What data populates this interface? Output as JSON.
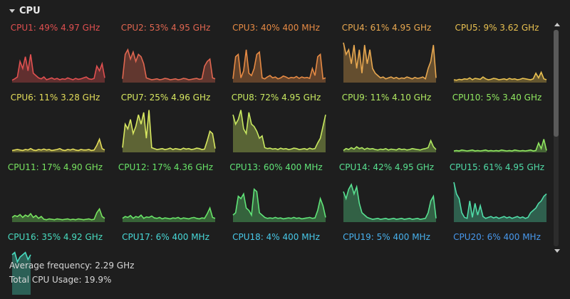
{
  "section": {
    "title": "CPU"
  },
  "cores": [
    {
      "label": "CPU1: 49% 4.97 GHz",
      "color": "#e05050",
      "history": [
        5,
        8,
        12,
        45,
        30,
        55,
        25,
        60,
        20,
        15,
        10,
        8,
        12,
        6,
        8,
        10,
        7,
        9,
        6,
        8,
        7,
        10,
        8,
        6,
        9,
        7,
        8,
        10,
        12,
        8,
        7,
        9,
        35,
        25,
        40,
        10
      ]
    },
    {
      "label": "CPU2: 53% 4.95 GHz",
      "color": "#e06650",
      "history": [
        8,
        60,
        70,
        50,
        65,
        45,
        60,
        55,
        40,
        10,
        8,
        6,
        7,
        8,
        6,
        7,
        9,
        8,
        6,
        7,
        8,
        6,
        7,
        9,
        8,
        6,
        7,
        8,
        9,
        7,
        8,
        35,
        45,
        50,
        10,
        8
      ]
    },
    {
      "label": "CPU3: 40% 400 MHz",
      "color": "#e68a44",
      "history": [
        8,
        55,
        60,
        10,
        25,
        70,
        20,
        15,
        30,
        60,
        65,
        10,
        8,
        12,
        15,
        10,
        12,
        8,
        10,
        14,
        12,
        9,
        11,
        10,
        13,
        9,
        12,
        10,
        11,
        9,
        30,
        15,
        55,
        60,
        8,
        10
      ]
    },
    {
      "label": "CPU4: 61% 4.95 GHz",
      "color": "#e8a850",
      "history": [
        85,
        60,
        70,
        40,
        80,
        30,
        70,
        20,
        80,
        40,
        70,
        30,
        20,
        15,
        10,
        12,
        8,
        10,
        12,
        9,
        11,
        8,
        10,
        9,
        12,
        10,
        8,
        11,
        9,
        10,
        12,
        8,
        30,
        45,
        80,
        10
      ]
    },
    {
      "label": "CPU5: 9% 3.62 GHz",
      "color": "#e8c050",
      "history": [
        6,
        5,
        7,
        6,
        8,
        7,
        10,
        6,
        9,
        8,
        7,
        12,
        8,
        6,
        7,
        9,
        8,
        6,
        7,
        8,
        6,
        9,
        7,
        8,
        6,
        7,
        9,
        8,
        7,
        6,
        8,
        20,
        10,
        22,
        8,
        6
      ]
    },
    {
      "label": "CPU6: 11% 3.28 GHz",
      "color": "#e4dd5a",
      "history": [
        4,
        5,
        6,
        5,
        4,
        6,
        5,
        8,
        5,
        4,
        6,
        5,
        7,
        5,
        6,
        4,
        5,
        6,
        8,
        5,
        4,
        6,
        5,
        7,
        5,
        4,
        6,
        5,
        5,
        6,
        4,
        5,
        15,
        28,
        8,
        5
      ]
    },
    {
      "label": "CPU7: 25% 4.96 GHz",
      "color": "#d8e860",
      "history": [
        10,
        60,
        50,
        70,
        40,
        55,
        80,
        60,
        85,
        30,
        90,
        10,
        8,
        6,
        7,
        8,
        6,
        7,
        9,
        6,
        8,
        7,
        6,
        9,
        7,
        8,
        6,
        7,
        9,
        8,
        6,
        7,
        25,
        45,
        40,
        8
      ]
    },
    {
      "label": "CPU8: 72% 4.95 GHz",
      "color": "#c8e860",
      "history": [
        80,
        60,
        70,
        90,
        50,
        40,
        85,
        60,
        55,
        45,
        30,
        35,
        10,
        8,
        9,
        7,
        8,
        6,
        9,
        7,
        8,
        6,
        7,
        9,
        8,
        6,
        7,
        8,
        6,
        9,
        7,
        8,
        20,
        30,
        55,
        80
      ]
    },
    {
      "label": "CPU9: 11% 4.10 GHz",
      "color": "#b0e860",
      "history": [
        4,
        8,
        6,
        10,
        7,
        12,
        8,
        10,
        6,
        9,
        7,
        8,
        6,
        5,
        7,
        6,
        8,
        5,
        7,
        6,
        5,
        8,
        6,
        7,
        5,
        6,
        8,
        7,
        6,
        5,
        7,
        8,
        10,
        25,
        12,
        6
      ]
    },
    {
      "label": "CPU10: 5% 3.40 GHz",
      "color": "#90e860",
      "history": [
        3,
        4,
        3,
        5,
        4,
        3,
        4,
        5,
        3,
        4,
        3,
        4,
        5,
        3,
        4,
        3,
        4,
        3,
        5,
        4,
        3,
        4,
        3,
        5,
        4,
        3,
        4,
        3,
        4,
        5,
        3,
        4,
        20,
        8,
        28,
        4
      ]
    },
    {
      "label": "CPU11: 17% 4.90 GHz",
      "color": "#78e460",
      "history": [
        10,
        14,
        12,
        16,
        10,
        15,
        12,
        18,
        10,
        14,
        8,
        12,
        6,
        5,
        7,
        6,
        5,
        7,
        6,
        5,
        6,
        7,
        5,
        6,
        5,
        7,
        6,
        5,
        6,
        7,
        5,
        6,
        20,
        28,
        12,
        8
      ]
    },
    {
      "label": "CPU12: 17% 4.36 GHz",
      "color": "#68e468",
      "history": [
        8,
        12,
        10,
        14,
        8,
        12,
        10,
        15,
        8,
        11,
        10,
        13,
        9,
        8,
        10,
        7,
        9,
        8,
        7,
        9,
        8,
        10,
        7,
        9,
        8,
        7,
        9,
        10,
        8,
        7,
        9,
        8,
        18,
        30,
        10,
        8
      ]
    },
    {
      "label": "CPU13: 60% 400 MHz",
      "color": "#60e478",
      "history": [
        15,
        20,
        55,
        50,
        60,
        30,
        25,
        15,
        70,
        65,
        20,
        15,
        10,
        8,
        9,
        8,
        10,
        8,
        9,
        7,
        8,
        9,
        8,
        10,
        8,
        9,
        7,
        8,
        9,
        10,
        8,
        9,
        25,
        50,
        35,
        10
      ]
    },
    {
      "label": "CPU14: 42% 4.95 GHz",
      "color": "#58e090",
      "history": [
        65,
        50,
        70,
        80,
        60,
        75,
        40,
        20,
        15,
        10,
        8,
        6,
        7,
        8,
        6,
        7,
        8,
        6,
        7,
        8,
        6,
        7,
        8,
        6,
        7,
        8,
        6,
        7,
        8,
        6,
        7,
        8,
        20,
        45,
        55,
        8
      ]
    },
    {
      "label": "CPU15: 61% 4.95 GHz",
      "color": "#50dca8",
      "history": [
        85,
        60,
        50,
        20,
        10,
        8,
        45,
        10,
        40,
        15,
        35,
        12,
        8,
        10,
        12,
        9,
        11,
        8,
        10,
        12,
        9,
        11,
        8,
        10,
        12,
        9,
        11,
        8,
        10,
        20,
        25,
        30,
        40,
        45,
        55,
        60
      ]
    },
    {
      "label": "CPU16: 35% 4.92 GHz",
      "color": "#48dcc0"
    },
    {
      "label": "CPU17: 6% 400 MHz",
      "color": "#48d8d8"
    },
    {
      "label": "CPU18: 4% 400 MHz",
      "color": "#48c8e8"
    },
    {
      "label": "CPU19: 5% 400 MHz",
      "color": "#48b0ec"
    },
    {
      "label": "CPU20: 6% 400 MHz",
      "color": "#4898ec"
    }
  ],
  "cpu16_partial_history": [
    85,
    90,
    70,
    80,
    85,
    90,
    75,
    85
  ],
  "footer": {
    "average_frequency": "Average frequency: 2.29 GHz",
    "total_usage": "Total CPU Usage: 19.9%"
  }
}
